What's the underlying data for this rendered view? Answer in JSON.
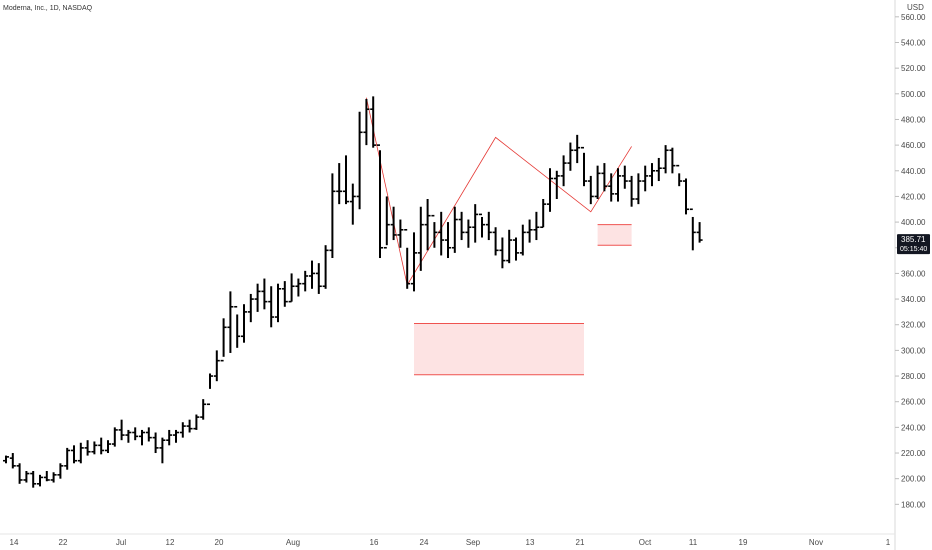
{
  "chart_data": {
    "type": "ohlc",
    "title": "Moderna, Inc., 1D, NASDAQ",
    "currency": "USD",
    "ylim": [
      160,
      570
    ],
    "y_ticks": [
      180,
      200,
      220,
      240,
      260,
      280,
      300,
      320,
      340,
      360,
      380,
      400,
      420,
      440,
      460,
      480,
      500,
      520,
      540,
      560
    ],
    "y_tick_labels": [
      "180.00",
      "200.00",
      "220.00",
      "240.00",
      "260.00",
      "280.00",
      "300.00",
      "320.00",
      "340.00",
      "360.00",
      "380.00",
      "400.00",
      "420.00",
      "440.00",
      "460.00",
      "480.00",
      "500.00",
      "520.00",
      "540.00",
      "560.00"
    ],
    "x_labels": [
      "14",
      "22",
      "Jul",
      "12",
      "20",
      "Aug",
      "16",
      "24",
      "Sep",
      "13",
      "21",
      "Oct",
      "11",
      "19",
      "Nov",
      "1"
    ],
    "current_price": "385.71",
    "countdown": "05:15:40",
    "colors": {
      "bars": "#000000",
      "zigzag": "#e53935",
      "zone_fill": "#fde3e3",
      "zone_border": "#ef5350",
      "price_tag": "#131722",
      "axis_text": "#4a4a4a"
    },
    "bars": [
      [
        214,
        218,
        212,
        217
      ],
      [
        216,
        220,
        208,
        210
      ],
      [
        210,
        212,
        196,
        199
      ],
      [
        199,
        206,
        197,
        204
      ],
      [
        204,
        206,
        193,
        196
      ],
      [
        196,
        203,
        194,
        201
      ],
      [
        201,
        206,
        198,
        199
      ],
      [
        199,
        205,
        197,
        203
      ],
      [
        203,
        212,
        200,
        210
      ],
      [
        210,
        224,
        207,
        222
      ],
      [
        222,
        226,
        212,
        214
      ],
      [
        214,
        228,
        212,
        224
      ],
      [
        224,
        230,
        218,
        221
      ],
      [
        221,
        229,
        219,
        226
      ],
      [
        226,
        232,
        219,
        222
      ],
      [
        222,
        230,
        220,
        227
      ],
      [
        227,
        240,
        225,
        238
      ],
      [
        238,
        246,
        230,
        234
      ],
      [
        234,
        238,
        228,
        236
      ],
      [
        236,
        240,
        230,
        233
      ],
      [
        233,
        238,
        226,
        236
      ],
      [
        236,
        240,
        229,
        232
      ],
      [
        232,
        236,
        220,
        224
      ],
      [
        224,
        232,
        212,
        230
      ],
      [
        230,
        238,
        226,
        234
      ],
      [
        234,
        238,
        228,
        236
      ],
      [
        236,
        244,
        232,
        241
      ],
      [
        241,
        246,
        236,
        239
      ],
      [
        239,
        250,
        238,
        248
      ],
      [
        248,
        262,
        246,
        258
      ],
      [
        258,
        282,
        270,
        280
      ],
      [
        280,
        300,
        276,
        292
      ],
      [
        292,
        325,
        295,
        318
      ],
      [
        318,
        346,
        298,
        334
      ],
      [
        334,
        328,
        302,
        311
      ],
      [
        311,
        336,
        306,
        330
      ],
      [
        330,
        344,
        322,
        340
      ],
      [
        340,
        352,
        330,
        346
      ],
      [
        346,
        356,
        332,
        338
      ],
      [
        338,
        350,
        318,
        326
      ],
      [
        326,
        352,
        322,
        348
      ],
      [
        348,
        354,
        334,
        338
      ],
      [
        338,
        360,
        338,
        350
      ],
      [
        350,
        356,
        342,
        352
      ],
      [
        352,
        362,
        346,
        358
      ],
      [
        358,
        370,
        348,
        360
      ],
      [
        360,
        368,
        344,
        350
      ],
      [
        350,
        382,
        348,
        378
      ],
      [
        378,
        438,
        372,
        424
      ],
      [
        424,
        446,
        414,
        424
      ],
      [
        424,
        452,
        414,
        416
      ],
      [
        416,
        430,
        398,
        420
      ],
      [
        420,
        486,
        410,
        470
      ],
      [
        470,
        496,
        460,
        488
      ],
      [
        488,
        498,
        458,
        460
      ],
      [
        460,
        456,
        372,
        380
      ],
      [
        380,
        420,
        382,
        398
      ],
      [
        398,
        412,
        386,
        390
      ],
      [
        390,
        402,
        380,
        394
      ],
      [
        394,
        380,
        348,
        352
      ],
      [
        352,
        392,
        346,
        376
      ],
      [
        376,
        412,
        362,
        398
      ],
      [
        398,
        418,
        378,
        405
      ],
      [
        405,
        400,
        380,
        392
      ],
      [
        392,
        408,
        374,
        386
      ],
      [
        386,
        400,
        372,
        380
      ],
      [
        380,
        412,
        376,
        402
      ],
      [
        402,
        408,
        386,
        392
      ],
      [
        392,
        402,
        380,
        396
      ],
      [
        396,
        414,
        384,
        406
      ],
      [
        406,
        404,
        388,
        398
      ],
      [
        398,
        408,
        386,
        392
      ],
      [
        392,
        396,
        374,
        378
      ],
      [
        378,
        388,
        364,
        370
      ],
      [
        370,
        394,
        368,
        386
      ],
      [
        386,
        388,
        370,
        376
      ],
      [
        376,
        398,
        374,
        392
      ],
      [
        392,
        402,
        384,
        394
      ],
      [
        394,
        408,
        386,
        396
      ],
      [
        396,
        418,
        396,
        414
      ],
      [
        414,
        442,
        408,
        434
      ],
      [
        434,
        440,
        418,
        436
      ],
      [
        436,
        452,
        428,
        446
      ],
      [
        446,
        462,
        440,
        456
      ],
      [
        456,
        468,
        446,
        458
      ],
      [
        458,
        454,
        428,
        432
      ],
      [
        432,
        436,
        414,
        420
      ],
      [
        420,
        444,
        418,
        438
      ],
      [
        438,
        446,
        424,
        428
      ],
      [
        428,
        438,
        416,
        422
      ],
      [
        422,
        442,
        416,
        436
      ],
      [
        436,
        444,
        426,
        432
      ],
      [
        432,
        436,
        412,
        418
      ],
      [
        418,
        438,
        414,
        432
      ],
      [
        432,
        444,
        424,
        436
      ],
      [
        436,
        446,
        428,
        440
      ],
      [
        440,
        450,
        432,
        442
      ],
      [
        442,
        460,
        438,
        456
      ],
      [
        456,
        458,
        438,
        444
      ],
      [
        444,
        438,
        428,
        432
      ],
      [
        432,
        434,
        406,
        410
      ],
      [
        410,
        404,
        378,
        392
      ],
      [
        392,
        400,
        384,
        386
      ]
    ],
    "zigzag_points": [
      [
        53,
        497
      ],
      [
        59,
        351
      ],
      [
        72,
        466
      ],
      [
        86,
        408
      ],
      [
        92,
        459
      ]
    ],
    "zones": [
      {
        "from_bar": 60,
        "to_bar": 85,
        "low": 281,
        "high": 321
      },
      {
        "from_bar": 87,
        "to_bar": 92,
        "low": 382,
        "high": 398
      }
    ]
  }
}
